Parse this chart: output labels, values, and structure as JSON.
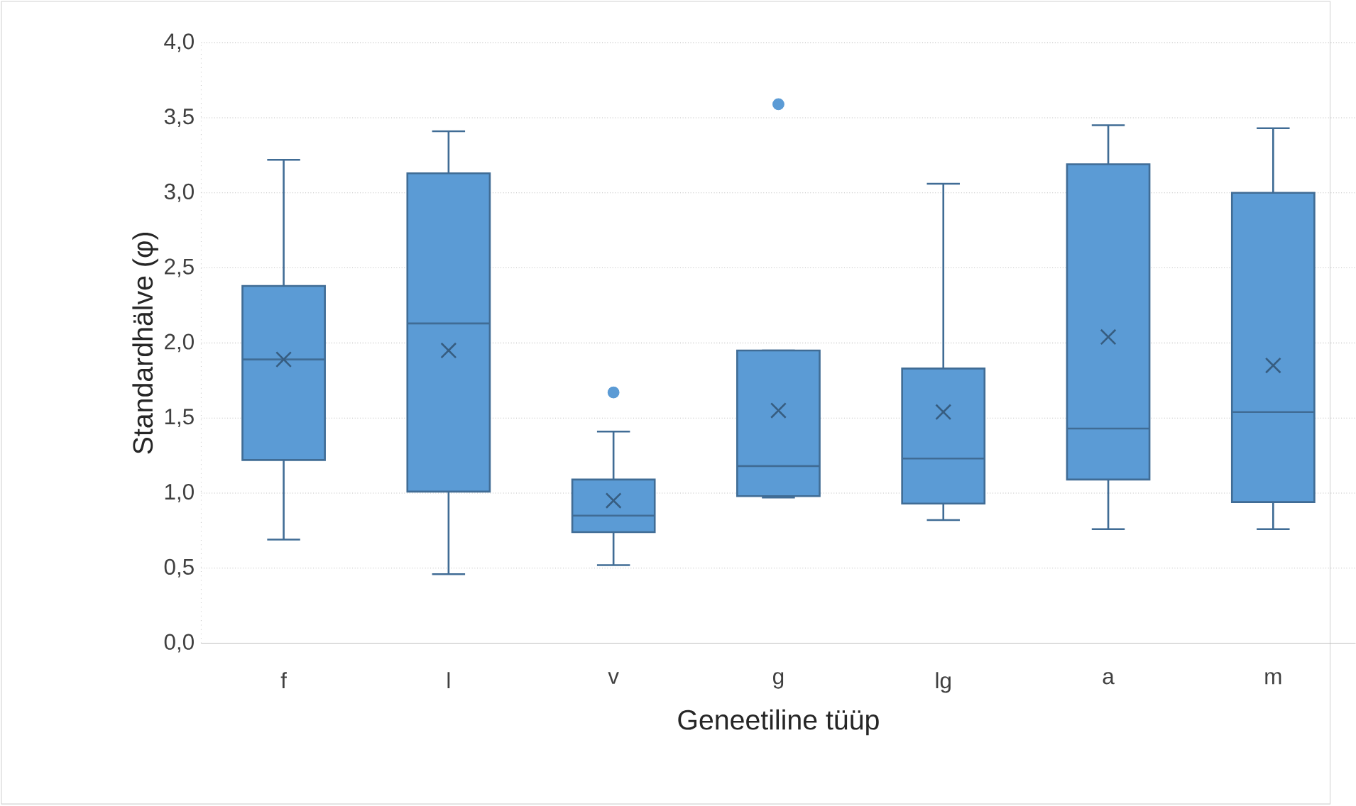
{
  "chart_data": {
    "type": "box",
    "xlabel": "Geneetiline tüüp",
    "ylabel": "Standardhälve (φ)",
    "categories": [
      "f",
      "l",
      "v",
      "g",
      "lg",
      "a",
      "m"
    ],
    "boxes": [
      {
        "low": 0.69,
        "q1": 1.22,
        "median": 1.89,
        "q3": 2.38,
        "high": 3.22,
        "mean": 1.89
      },
      {
        "low": 0.46,
        "q1": 1.01,
        "median": 2.13,
        "q3": 3.13,
        "high": 3.41,
        "mean": 1.95
      },
      {
        "low": 0.52,
        "q1": 0.74,
        "median": 0.85,
        "q3": 1.09,
        "high": 1.41,
        "mean": 0.95,
        "outliers": [
          1.67
        ]
      },
      {
        "low": 0.97,
        "q1": 0.98,
        "median": 1.18,
        "q3": 1.95,
        "high": 1.95,
        "mean": 1.55,
        "outliers": [
          3.59
        ]
      },
      {
        "low": 0.82,
        "q1": 0.93,
        "median": 1.23,
        "q3": 1.83,
        "high": 3.06,
        "mean": 1.54
      },
      {
        "low": 0.76,
        "q1": 1.09,
        "median": 1.43,
        "q3": 3.19,
        "high": 3.45,
        "mean": 2.04
      },
      {
        "low": 0.76,
        "q1": 0.94,
        "median": 1.54,
        "q3": 3.0,
        "high": 3.43,
        "mean": 1.85
      }
    ],
    "color": "#5b9bd5",
    "grid": "y",
    "ylim": [
      0,
      4
    ],
    "yticks": [
      {
        "value": 0,
        "label": "0,0"
      },
      {
        "value": 0.5,
        "label": "0,5"
      },
      {
        "value": 1,
        "label": "1,0"
      },
      {
        "value": 1.5,
        "label": "1,5"
      },
      {
        "value": 2,
        "label": "2,0"
      },
      {
        "value": 2.5,
        "label": "2,5"
      },
      {
        "value": 3,
        "label": "3,0"
      },
      {
        "value": 3.5,
        "label": "3,5"
      },
      {
        "value": 4,
        "label": "4,0"
      }
    ]
  }
}
